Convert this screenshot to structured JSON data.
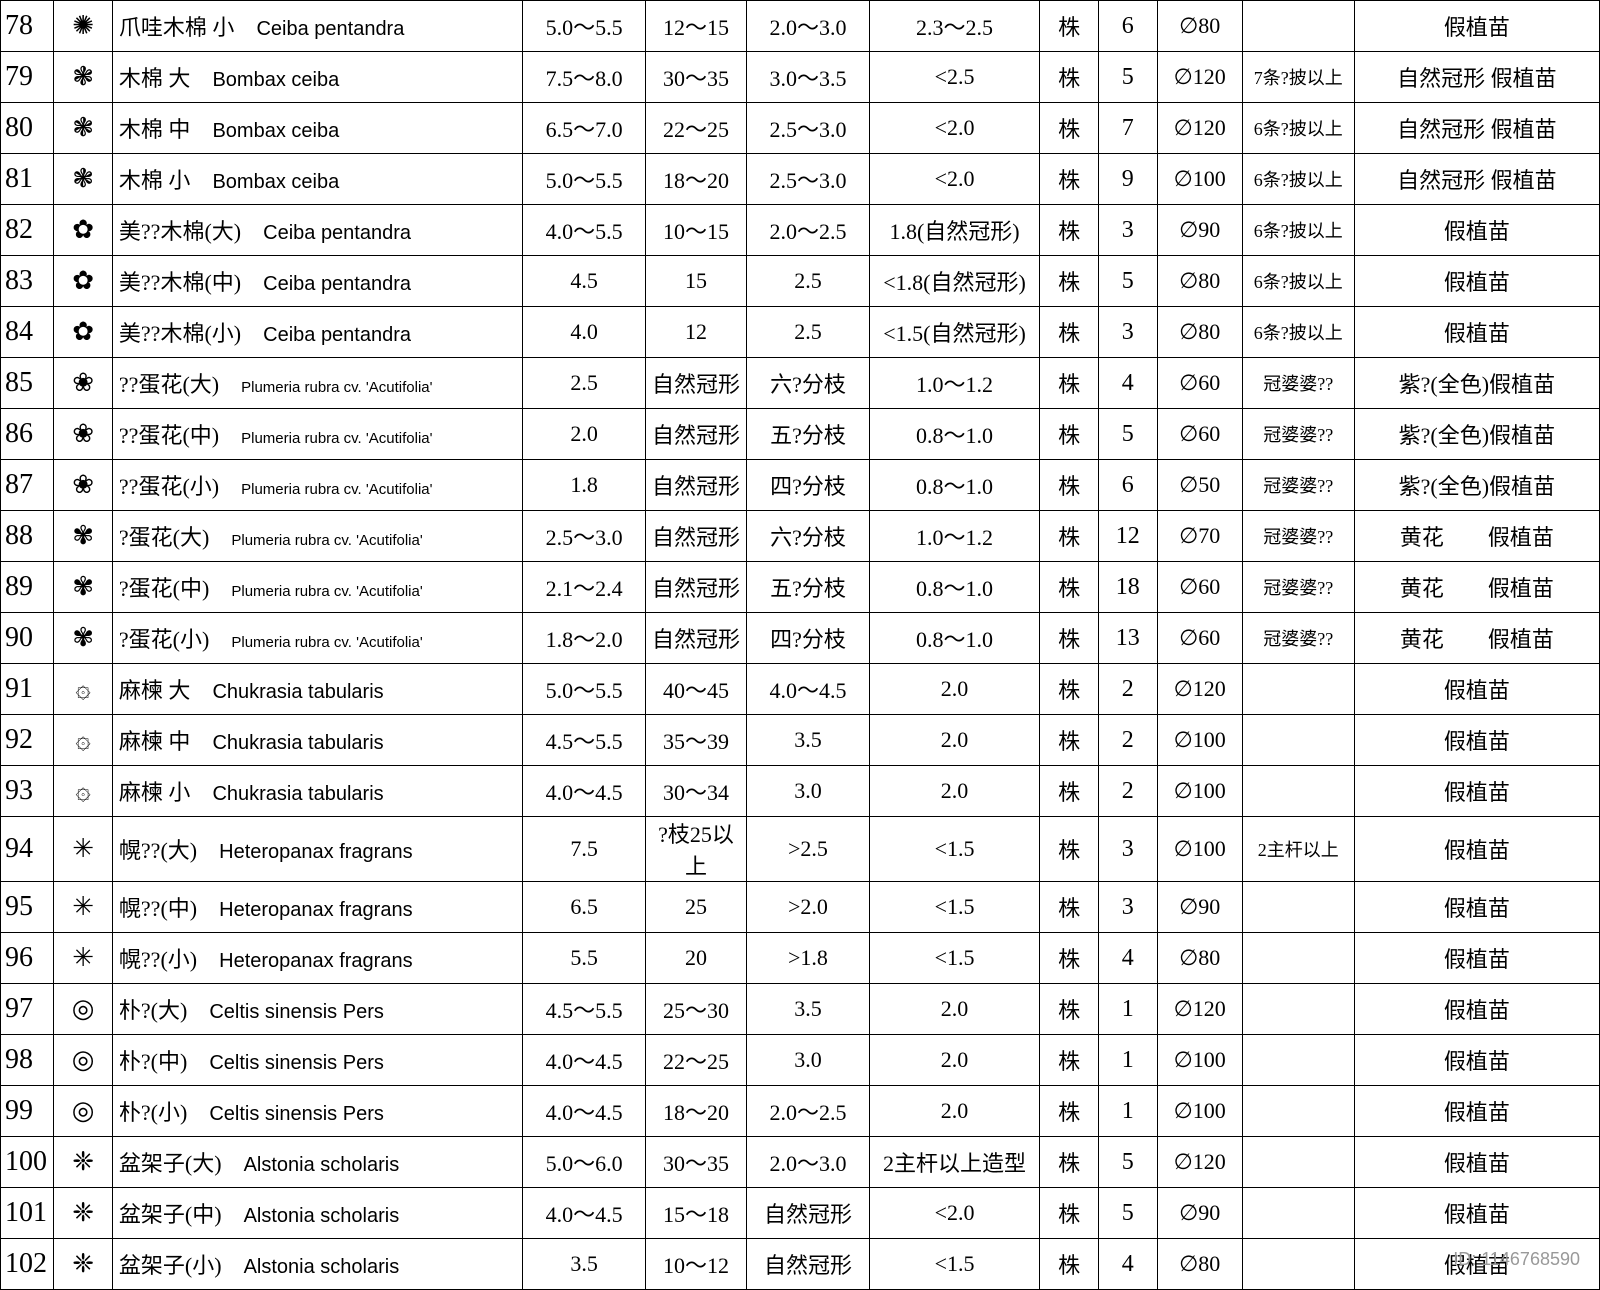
{
  "table": {
    "background": "#ffffff",
    "border_color": "#000000",
    "rows": [
      {
        "n": "78",
        "sym": "✺",
        "name_cn": "爪哇木棉 小",
        "name_lat": "Ceiba pentandra",
        "c4": "5.0～5.5",
        "c5": "12～15",
        "c6": "2.0～3.0",
        "c7": "2.3～2.5",
        "c8": "株",
        "c9": "6",
        "c10": "∅80",
        "c11": "",
        "c12": "假植苗"
      },
      {
        "n": "79",
        "sym": "❃",
        "name_cn": "木棉 大",
        "name_lat": "Bombax ceiba",
        "c4": "7.5～8.0",
        "c5": "30～35",
        "c6": "3.0～3.5",
        "c7": "<2.5",
        "c8": "株",
        "c9": "5",
        "c10": "∅120",
        "c11": "7条?披以上",
        "c12": "自然冠形 假植苗"
      },
      {
        "n": "80",
        "sym": "❃",
        "name_cn": "木棉 中",
        "name_lat": "Bombax ceiba",
        "c4": "6.5～7.0",
        "c5": "22～25",
        "c6": "2.5～3.0",
        "c7": "<2.0",
        "c8": "株",
        "c9": "7",
        "c10": "∅120",
        "c11": "6条?披以上",
        "c12": "自然冠形 假植苗"
      },
      {
        "n": "81",
        "sym": "❃",
        "name_cn": "木棉 小",
        "name_lat": "Bombax ceiba",
        "c4": "5.0～5.5",
        "c5": "18～20",
        "c6": "2.5～3.0",
        "c7": "<2.0",
        "c8": "株",
        "c9": "9",
        "c10": "∅100",
        "c11": "6条?披以上",
        "c12": "自然冠形 假植苗"
      },
      {
        "n": "82",
        "sym": "✿",
        "name_cn": "美??木棉(大)",
        "name_lat": "Ceiba pentandra",
        "c4": "4.0～5.5",
        "c5": "10～15",
        "c6": "2.0～2.5",
        "c7": "1.8(自然冠形)",
        "c8": "株",
        "c9": "3",
        "c10": "∅90",
        "c11": "6条?披以上",
        "c12": "假植苗"
      },
      {
        "n": "83",
        "sym": "✿",
        "name_cn": "美??木棉(中)",
        "name_lat": "Ceiba pentandra",
        "c4": "4.5",
        "c5": "15",
        "c6": "2.5",
        "c7": "<1.8(自然冠形)",
        "c8": "株",
        "c9": "5",
        "c10": "∅80",
        "c11": "6条?披以上",
        "c12": "假植苗"
      },
      {
        "n": "84",
        "sym": "✿",
        "name_cn": "美??木棉(小)",
        "name_lat": "Ceiba pentandra",
        "c4": "4.0",
        "c5": "12",
        "c6": "2.5",
        "c7": "<1.5(自然冠形)",
        "c8": "株",
        "c9": "3",
        "c10": "∅80",
        "c11": "6条?披以上",
        "c12": "假植苗"
      },
      {
        "n": "85",
        "sym": "❀",
        "name_cn": "??蛋花(大)",
        "name_lat": "Plumeria rubra cv. 'Acutifolia'",
        "lat_small": true,
        "c4": "2.5",
        "c5": "自然冠形",
        "c6": "六?分枝",
        "c7": "1.0～1.2",
        "c8": "株",
        "c9": "4",
        "c10": "∅60",
        "c11": "冠婆婆??",
        "c12": "紫?(全色)假植苗"
      },
      {
        "n": "86",
        "sym": "❀",
        "name_cn": "??蛋花(中)",
        "name_lat": "Plumeria rubra cv. 'Acutifolia'",
        "lat_small": true,
        "c4": "2.0",
        "c5": "自然冠形",
        "c6": "五?分枝",
        "c7": "0.8～1.0",
        "c8": "株",
        "c9": "5",
        "c10": "∅60",
        "c11": "冠婆婆??",
        "c12": "紫?(全色)假植苗"
      },
      {
        "n": "87",
        "sym": "❀",
        "name_cn": "??蛋花(小)",
        "name_lat": "Plumeria rubra cv. 'Acutifolia'",
        "lat_small": true,
        "c4": "1.8",
        "c5": "自然冠形",
        "c6": "四?分枝",
        "c7": "0.8～1.0",
        "c8": "株",
        "c9": "6",
        "c10": "∅50",
        "c11": "冠婆婆??",
        "c12": "紫?(全色)假植苗"
      },
      {
        "n": "88",
        "sym": "✾",
        "name_cn": "?蛋花(大)",
        "name_lat": "Plumeria rubra cv. 'Acutifolia'",
        "lat_small": true,
        "c4": "2.5～3.0",
        "c5": "自然冠形",
        "c6": "六?分枝",
        "c7": "1.0～1.2",
        "c8": "株",
        "c9": "12",
        "c10": "∅70",
        "c11": "冠婆婆??",
        "c12": "黄花　　假植苗"
      },
      {
        "n": "89",
        "sym": "✾",
        "name_cn": "?蛋花(中)",
        "name_lat": "Plumeria rubra cv. 'Acutifolia'",
        "lat_small": true,
        "c4": "2.1～2.4",
        "c5": "自然冠形",
        "c6": "五?分枝",
        "c7": "0.8～1.0",
        "c8": "株",
        "c9": "18",
        "c10": "∅60",
        "c11": "冠婆婆??",
        "c12": "黄花　　假植苗"
      },
      {
        "n": "90",
        "sym": "✾",
        "name_cn": "?蛋花(小)",
        "name_lat": "Plumeria rubra cv. 'Acutifolia'",
        "lat_small": true,
        "c4": "1.8～2.0",
        "c5": "自然冠形",
        "c6": "四?分枝",
        "c7": "0.8～1.0",
        "c8": "株",
        "c9": "13",
        "c10": "∅60",
        "c11": "冠婆婆??",
        "c12": "黄花　　假植苗"
      },
      {
        "n": "91",
        "sym": "۞",
        "name_cn": "麻楝 大",
        "name_lat": "Chukrasia tabularis",
        "c4": "5.0～5.5",
        "c5": "40～45",
        "c6": "4.0～4.5",
        "c7": "2.0",
        "c8": "株",
        "c9": "2",
        "c10": "∅120",
        "c11": "",
        "c12": "假植苗"
      },
      {
        "n": "92",
        "sym": "۞",
        "name_cn": "麻楝 中",
        "name_lat": "Chukrasia tabularis",
        "c4": "4.5～5.5",
        "c5": "35～39",
        "c6": "3.5",
        "c7": "2.0",
        "c8": "株",
        "c9": "2",
        "c10": "∅100",
        "c11": "",
        "c12": "假植苗"
      },
      {
        "n": "93",
        "sym": "۞",
        "name_cn": "麻楝 小",
        "name_lat": "Chukrasia tabularis",
        "c4": "4.0～4.5",
        "c5": "30～34",
        "c6": "3.0",
        "c7": "2.0",
        "c8": "株",
        "c9": "2",
        "c10": "∅100",
        "c11": "",
        "c12": "假植苗"
      },
      {
        "n": "94",
        "sym": "✳",
        "name_cn": "幌??(大)",
        "name_lat": "Heteropanax fragrans",
        "c4": "7.5",
        "c5": "?枝25以上",
        "c6": ">2.5",
        "c7": "<1.5",
        "c8": "株",
        "c9": "3",
        "c10": "∅100",
        "c11": "2主杆以上",
        "c12": "假植苗"
      },
      {
        "n": "95",
        "sym": "✳",
        "name_cn": "幌??(中)",
        "name_lat": "Heteropanax fragrans",
        "c4": "6.5",
        "c5": "25",
        "c6": ">2.0",
        "c7": "<1.5",
        "c8": "株",
        "c9": "3",
        "c10": "∅90",
        "c11": "",
        "c12": "假植苗"
      },
      {
        "n": "96",
        "sym": "✳",
        "name_cn": "幌??(小)",
        "name_lat": "Heteropanax fragrans",
        "c4": "5.5",
        "c5": "20",
        "c6": ">1.8",
        "c7": "<1.5",
        "c8": "株",
        "c9": "4",
        "c10": "∅80",
        "c11": "",
        "c12": "假植苗"
      },
      {
        "n": "97",
        "sym": "◎",
        "name_cn": "朴?(大)",
        "name_lat": "Celtis sinensis Pers",
        "c4": "4.5～5.5",
        "c5": "25～30",
        "c6": "3.5",
        "c7": "2.0",
        "c8": "株",
        "c9": "1",
        "c10": "∅120",
        "c11": "",
        "c12": "假植苗"
      },
      {
        "n": "98",
        "sym": "◎",
        "name_cn": "朴?(中)",
        "name_lat": "Celtis sinensis Pers",
        "c4": "4.0～4.5",
        "c5": "22～25",
        "c6": "3.0",
        "c7": "2.0",
        "c8": "株",
        "c9": "1",
        "c10": "∅100",
        "c11": "",
        "c12": "假植苗"
      },
      {
        "n": "99",
        "sym": "◎",
        "name_cn": "朴?(小)",
        "name_lat": "Celtis sinensis Pers",
        "c4": "4.0～4.5",
        "c5": "18～20",
        "c6": "2.0～2.5",
        "c7": "2.0",
        "c8": "株",
        "c9": "1",
        "c10": "∅100",
        "c11": "",
        "c12": "假植苗"
      },
      {
        "n": "100",
        "sym": "❈",
        "name_cn": "盆架子(大)",
        "name_lat": "Alstonia scholaris",
        "c4": "5.0～6.0",
        "c5": "30～35",
        "c6": "2.0～3.0",
        "c7": "2主杆以上造型",
        "c8": "株",
        "c9": "5",
        "c10": "∅120",
        "c11": "",
        "c12": "假植苗"
      },
      {
        "n": "101",
        "sym": "❈",
        "name_cn": "盆架子(中)",
        "name_lat": "Alstonia scholaris",
        "c4": "4.0～4.5",
        "c5": "15～18",
        "c6": "自然冠形",
        "c7": "<2.0",
        "c8": "株",
        "c9": "5",
        "c10": "∅90",
        "c11": "",
        "c12": "假植苗"
      },
      {
        "n": "102",
        "sym": "❈",
        "name_cn": "盆架子(小)",
        "name_lat": "Alstonia scholaris",
        "c4": "3.5",
        "c5": "10～12",
        "c6": "自然冠形",
        "c7": "<1.5",
        "c8": "株",
        "c9": "4",
        "c10": "∅80",
        "c11": "",
        "c12": "假植苗"
      }
    ]
  },
  "watermark": {
    "text": "ID: 1146768590",
    "color": "#999999"
  }
}
